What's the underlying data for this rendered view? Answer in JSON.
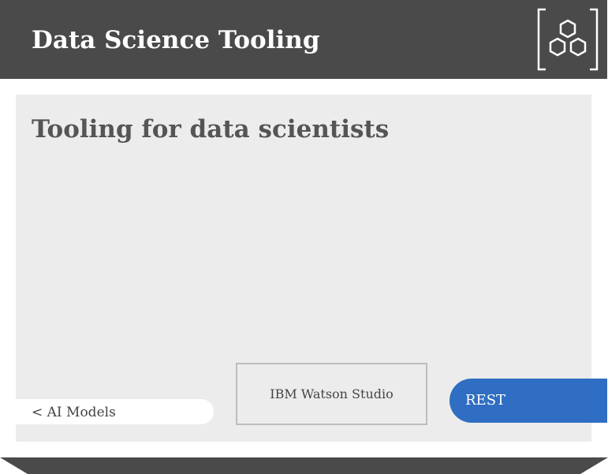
{
  "header": {
    "title": "Data Science Tooling",
    "logo_icon": "hexagon-cluster-icon"
  },
  "panel": {
    "title": "Tooling for data scientists"
  },
  "navigation": {
    "back_label": "< AI Models"
  },
  "tool": {
    "label": "IBM Watson Studio"
  },
  "action": {
    "label": "REST"
  },
  "colors": {
    "header_bg": "#4a4a4a",
    "panel_bg": "#ececec",
    "accent": "#2f6ec2",
    "title_text": "#555555"
  }
}
